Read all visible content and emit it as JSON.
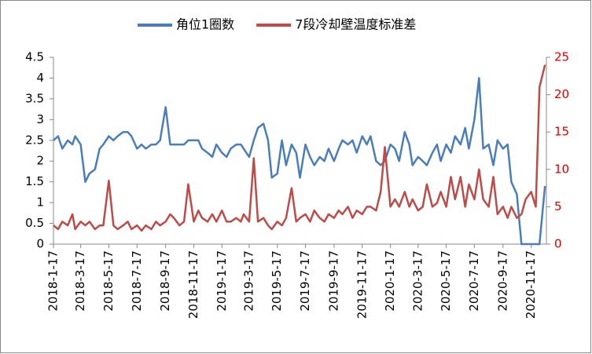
{
  "chart_data": {
    "type": "line",
    "x": [
      "2018-1-17",
      "2018-1-27",
      "2018-2-5",
      "2018-2-17",
      "2018-2-27",
      "2018-3-5",
      "2018-3-17",
      "2018-3-27",
      "2018-4-5",
      "2018-4-17",
      "2018-4-27",
      "2018-5-5",
      "2018-5-17",
      "2018-5-27",
      "2018-6-5",
      "2018-6-17",
      "2018-6-27",
      "2018-7-5",
      "2018-7-17",
      "2018-7-27",
      "2018-8-5",
      "2018-8-17",
      "2018-8-27",
      "2018-9-5",
      "2018-9-17",
      "2018-9-27",
      "2018-10-5",
      "2018-10-17",
      "2018-10-27",
      "2018-11-5",
      "2018-11-17",
      "2018-11-27",
      "2018-12-5",
      "2018-12-17",
      "2018-12-27",
      "2019-1-5",
      "2019-1-17",
      "2019-1-27",
      "2019-2-5",
      "2019-2-17",
      "2019-2-27",
      "2019-3-5",
      "2019-3-17",
      "2019-3-27",
      "2019-4-5",
      "2019-4-17",
      "2019-4-27",
      "2019-5-5",
      "2019-5-17",
      "2019-5-27",
      "2019-6-5",
      "2019-6-17",
      "2019-6-27",
      "2019-7-5",
      "2019-7-17",
      "2019-7-27",
      "2019-8-5",
      "2019-8-17",
      "2019-8-27",
      "2019-9-5",
      "2019-9-17",
      "2019-9-27",
      "2019-10-5",
      "2019-10-17",
      "2019-10-27",
      "2019-11-5",
      "2019-11-17",
      "2019-11-27",
      "2019-12-5",
      "2019-12-17",
      "2019-12-27",
      "2020-1-5",
      "2020-1-17",
      "2020-1-27",
      "2020-2-5",
      "2020-2-17",
      "2020-2-27",
      "2020-3-5",
      "2020-3-17",
      "2020-3-27",
      "2020-4-5",
      "2020-4-17",
      "2020-4-27",
      "2020-5-5",
      "2020-5-17",
      "2020-5-27",
      "2020-6-5",
      "2020-6-17",
      "2020-6-27",
      "2020-7-5",
      "2020-7-17",
      "2020-7-27",
      "2020-8-5",
      "2020-8-17",
      "2020-8-27",
      "2020-9-5",
      "2020-9-17",
      "2020-9-27",
      "2020-10-5",
      "2020-10-17",
      "2020-10-27",
      "2020-11-5",
      "2020-11-17",
      "2020-11-27",
      "2020-12-5",
      "2020-12-17"
    ],
    "series": [
      {
        "name": "角位1圈数",
        "color": "#4a7ebb",
        "values": [
          2.5,
          2.6,
          2.3,
          2.5,
          2.4,
          2.6,
          2.4,
          1.5,
          1.7,
          1.8,
          2.3,
          2.4,
          2.6,
          2.5,
          2.6,
          2.7,
          2.7,
          2.6,
          2.3,
          2.4,
          2.3,
          2.4,
          2.4,
          2.5,
          3.3,
          2.4,
          2.4,
          2.4,
          2.4,
          2.5,
          2.5,
          2.5,
          2.3,
          2.2,
          2.1,
          2.4,
          2.2,
          2.1,
          2.3,
          2.4,
          2.4,
          2.3,
          2.1,
          2.5,
          2.8,
          2.9,
          2.5,
          1.6,
          1.7,
          2.5,
          1.9,
          2.4,
          2.2,
          1.6,
          2.4,
          2.1,
          1.9,
          2.1,
          2.0,
          2.3,
          2.0,
          2.3,
          2.5,
          2.4,
          2.5,
          2.2,
          2.6,
          2.4,
          2.6,
          2.0,
          1.9,
          2.0,
          2.4,
          2.3,
          2.0,
          2.7,
          2.4,
          1.9,
          2.1,
          2.0,
          1.9,
          2.2,
          2.4,
          2.0,
          2.4,
          2.2,
          2.6,
          2.4,
          2.8,
          2.3,
          3.0,
          4.0,
          2.3,
          2.4,
          1.9,
          2.5,
          2.3,
          2.4,
          1.5,
          1.2,
          0,
          0,
          0,
          0,
          0,
          1.4
        ]
      },
      {
        "name": "7段冷却壁温度标准差",
        "color": "#be4b48",
        "axis": "y2",
        "values": [
          2.5,
          2,
          3,
          2.5,
          4,
          2,
          3,
          2.5,
          3,
          2,
          2.5,
          2.5,
          8.5,
          2.5,
          2,
          2.5,
          3,
          2,
          2.5,
          1.8,
          2.5,
          2,
          3,
          2.5,
          3,
          4,
          3.5,
          2.5,
          3,
          8,
          3,
          4.5,
          3.5,
          3,
          4,
          3,
          4.5,
          3,
          3,
          3.5,
          3,
          4,
          3,
          11.5,
          3,
          3.5,
          2.5,
          2,
          3,
          2.5,
          3.5,
          7.5,
          3,
          3.5,
          4,
          3,
          4.5,
          3.5,
          3,
          4,
          3.5,
          4.5,
          4,
          5,
          3.5,
          4.5,
          4,
          5,
          5,
          4.5,
          7,
          13,
          5,
          6,
          5,
          7,
          5,
          6,
          4.5,
          5,
          8,
          5,
          5.5,
          7,
          5,
          9,
          6,
          9,
          5,
          8,
          6,
          10,
          6,
          5,
          9,
          4,
          5,
          3.5,
          5,
          3.5,
          4,
          6,
          7,
          5,
          21,
          24
        ]
      }
    ],
    "xlim": [
      "2018-1-17",
      "2020-12-20"
    ],
    "xticks": [
      "2018-1-17",
      "2018-3-17",
      "2018-5-17",
      "2018-7-17",
      "2018-9-17",
      "2018-11-17",
      "2019-1-17",
      "2019-3-17",
      "2019-5-17",
      "2019-7-17",
      "2019-9-17",
      "2019-11-17",
      "2020-1-17",
      "2020-3-17",
      "2020-5-17",
      "2020-7-17",
      "2020-9-17",
      "2020-11-17"
    ],
    "ylim": [
      0,
      4.5
    ],
    "yticks": [
      0,
      0.5,
      1,
      1.5,
      2,
      2.5,
      3,
      3.5,
      4,
      4.5
    ],
    "y2lim": [
      0,
      25
    ],
    "y2ticks": [
      0,
      5,
      10,
      15,
      20,
      25
    ],
    "legend": "top"
  }
}
